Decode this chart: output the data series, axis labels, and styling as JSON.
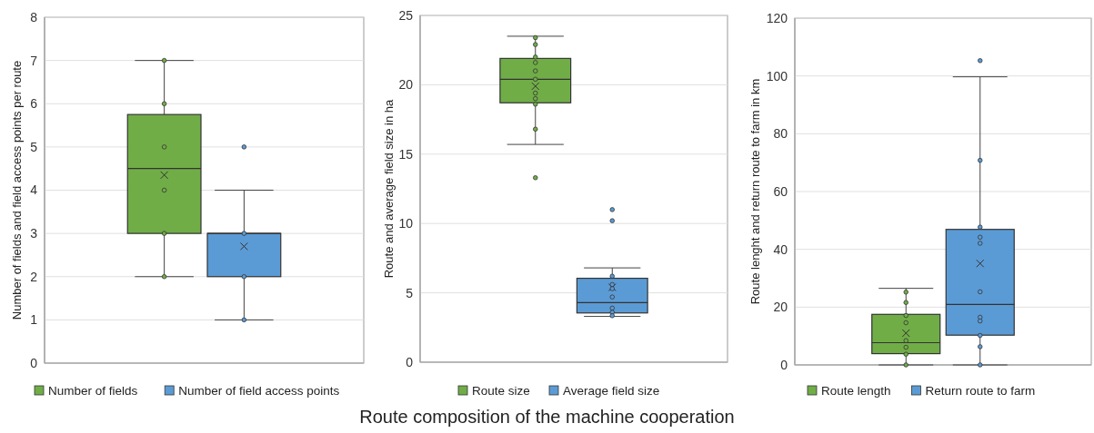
{
  "chart_data": [
    {
      "type": "box",
      "ylabel": "Number of fields and field access points per route",
      "categories": [
        null
      ],
      "ylim": [
        0,
        8
      ],
      "yticks": [
        0,
        1,
        2,
        3,
        4,
        5,
        6,
        7,
        8
      ],
      "grid": "y",
      "legend": "bottom",
      "series": [
        {
          "name": "Number of fields",
          "color": "#70ad47",
          "boxes": [
            {
              "low": 2,
              "q1": 3,
              "median": 4.5,
              "q3": 5.75,
              "high": 7,
              "mean": 4.35,
              "outliers": [
                2,
                3,
                4,
                5,
                6,
                7
              ]
            }
          ]
        },
        {
          "name": "Number of field access points",
          "color": "#5b9bd5",
          "boxes": [
            {
              "low": 1,
              "q1": 2,
              "median": 3,
              "q3": 3,
              "high": 4,
              "mean": 2.7,
              "outliers": [
                1,
                2,
                3,
                5
              ]
            }
          ]
        }
      ]
    },
    {
      "type": "box",
      "title": "Route composition of the machine cooperation",
      "ylabel": "Route and average field size in ha",
      "categories": [
        null
      ],
      "ylim": [
        0,
        25
      ],
      "yticks": [
        0,
        5,
        10,
        15,
        20,
        25
      ],
      "grid": "y",
      "legend": "bottom",
      "series": [
        {
          "name": "Route size",
          "color": "#70ad47",
          "boxes": [
            {
              "low": 15.7,
              "q1": 18.7,
              "median": 20.4,
              "q3": 21.9,
              "high": 23.5,
              "mean": 19.9,
              "outliers": [
                23.4,
                22.9,
                22.0,
                21.6,
                21.0,
                20.4,
                19.4,
                19.0,
                18.6,
                16.8,
                13.3
              ]
            }
          ]
        },
        {
          "name": "Average field size",
          "color": "#5b9bd5",
          "boxes": [
            {
              "low": 3.3,
              "q1": 3.55,
              "median": 4.3,
              "q3": 6.05,
              "high": 6.8,
              "mean": 5.4,
              "outliers": [
                11.0,
                10.2,
                6.2,
                5.6,
                5.3,
                4.7,
                3.9,
                3.6,
                3.35
              ]
            }
          ]
        }
      ]
    },
    {
      "type": "box",
      "ylabel": "Route lenght and return route to farm in km",
      "categories": [
        null
      ],
      "ylim": [
        0,
        120
      ],
      "yticks": [
        0,
        20,
        40,
        60,
        80,
        100,
        120
      ],
      "grid": "y",
      "legend": "bottom",
      "series": [
        {
          "name": "Route length",
          "color": "#70ad47",
          "boxes": [
            {
              "low": 0,
              "q1": 3.9,
              "median": 7.7,
              "q3": 17.5,
              "high": 26.5,
              "mean": 11.0,
              "outliers": [
                25.2,
                21.6,
                17.1,
                14.6,
                8.4,
                6.1,
                3.7,
                0
              ]
            }
          ]
        },
        {
          "name": "Return route to farm",
          "color": "#5b9bd5",
          "boxes": [
            {
              "low": 0,
              "q1": 10.3,
              "median": 20.9,
              "q3": 46.9,
              "high": 99.7,
              "mean": 35.1,
              "outliers": [
                105.3,
                70.8,
                47.7,
                44.2,
                42.1,
                25.3,
                16.5,
                15.2,
                10.2,
                6.3,
                0
              ]
            }
          ]
        }
      ]
    }
  ]
}
